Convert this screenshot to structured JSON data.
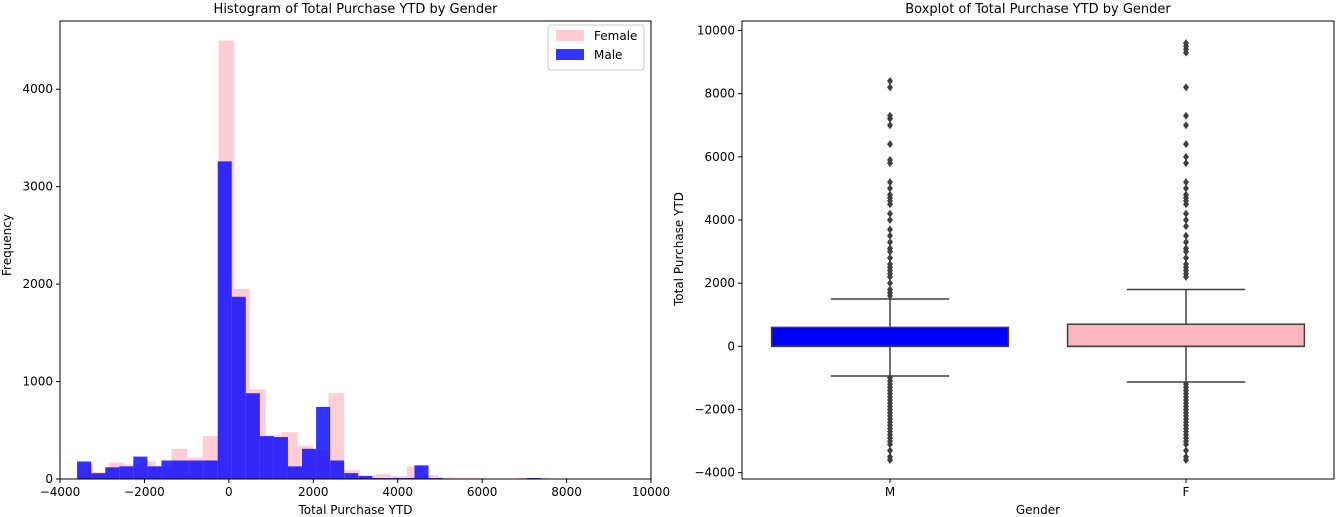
{
  "chart_data": [
    {
      "type": "bar",
      "title": "Histogram of Total Purchase YTD by Gender",
      "xlabel": "Total Purchase YTD",
      "ylabel": "Frequency",
      "xlim": [
        -4000,
        10000
      ],
      "ylim": [
        0,
        4700
      ],
      "x_ticks": [
        -4000,
        -2000,
        0,
        2000,
        4000,
        6000,
        8000,
        10000
      ],
      "y_ticks": [
        0,
        1000,
        2000,
        3000,
        4000
      ],
      "legend_position": "top-right",
      "grid": false,
      "series": [
        {
          "name": "Female",
          "color": "#ffc0cb",
          "alpha": 0.8,
          "bin_width": 372,
          "bins": [
            [
              -3593,
              150
            ],
            [
              -3221,
              70
            ],
            [
              -2849,
              170
            ],
            [
              -2477,
              150
            ],
            [
              -2105,
              180
            ],
            [
              -1733,
              130
            ],
            [
              -1361,
              310
            ],
            [
              -989,
              220
            ],
            [
              -617,
              440
            ],
            [
              -245,
              4500
            ],
            [
              127,
              1950
            ],
            [
              499,
              920
            ],
            [
              871,
              450
            ],
            [
              1243,
              480
            ],
            [
              1615,
              340
            ],
            [
              1987,
              290
            ],
            [
              2359,
              880
            ],
            [
              2731,
              90
            ],
            [
              3103,
              40
            ],
            [
              3475,
              50
            ],
            [
              3847,
              30
            ],
            [
              4219,
              130
            ],
            [
              4591,
              40
            ],
            [
              4963,
              15
            ],
            [
              5335,
              10
            ],
            [
              5707,
              10
            ],
            [
              6079,
              5
            ],
            [
              6451,
              5
            ],
            [
              6823,
              10
            ],
            [
              7195,
              10
            ],
            [
              7567,
              5
            ],
            [
              7939,
              5
            ],
            [
              8311,
              5
            ],
            [
              8683,
              5
            ],
            [
              9055,
              5
            ],
            [
              9427,
              5
            ]
          ]
        },
        {
          "name": "Male",
          "color": "#0000ff",
          "alpha": 0.8,
          "bin_width": 333,
          "bins": [
            [
              -3595,
              180
            ],
            [
              -3262,
              60
            ],
            [
              -2929,
              120
            ],
            [
              -2596,
              130
            ],
            [
              -2263,
              230
            ],
            [
              -1930,
              130
            ],
            [
              -1597,
              190
            ],
            [
              -1264,
              190
            ],
            [
              -931,
              190
            ],
            [
              -598,
              190
            ],
            [
              -265,
              3260
            ],
            [
              68,
              1870
            ],
            [
              401,
              880
            ],
            [
              734,
              440
            ],
            [
              1067,
              430
            ],
            [
              1400,
              130
            ],
            [
              1733,
              310
            ],
            [
              2066,
              740
            ],
            [
              2399,
              190
            ],
            [
              2732,
              60
            ],
            [
              3065,
              30
            ],
            [
              3398,
              10
            ],
            [
              3731,
              10
            ],
            [
              4064,
              10
            ],
            [
              4397,
              140
            ],
            [
              4730,
              10
            ],
            [
              5063,
              5
            ],
            [
              5396,
              5
            ],
            [
              5729,
              5
            ],
            [
              6062,
              5
            ],
            [
              6395,
              5
            ],
            [
              6728,
              5
            ],
            [
              7061,
              10
            ],
            [
              7394,
              5
            ],
            [
              7727,
              5
            ],
            [
              8060,
              5
            ],
            [
              8393,
              5
            ]
          ]
        }
      ]
    },
    {
      "type": "box",
      "title": "Boxplot of Total Purchase YTD by Gender",
      "xlabel": "Gender",
      "ylabel": "Total Purchase YTD",
      "categories": [
        "M",
        "F"
      ],
      "ylim": [
        -4200,
        10300
      ],
      "y_ticks": [
        -4000,
        -2000,
        0,
        2000,
        4000,
        6000,
        8000,
        10000
      ],
      "grid": false,
      "boxes": [
        {
          "name": "M",
          "color": "#0000ff",
          "whisker_low": -940,
          "q1": 0,
          "median": 0,
          "q3": 600,
          "whisker_high": 1500,
          "outliers": [
            -3600,
            -3500,
            -3300,
            -3100,
            -3000,
            -2900,
            -2800,
            -2700,
            -2600,
            -2500,
            -2400,
            -2300,
            -2200,
            -2100,
            -2000,
            -1900,
            -1800,
            -1700,
            -1600,
            -1500,
            -1400,
            -1300,
            -1200,
            -1100,
            -1000,
            1600,
            1700,
            1800,
            2000,
            2200,
            2300,
            2400,
            2500,
            2600,
            2800,
            3000,
            3100,
            3300,
            3500,
            3700,
            4000,
            4200,
            4500,
            4600,
            4700,
            4800,
            5000,
            5200,
            5800,
            5900,
            6400,
            7000,
            7200,
            7300,
            8200,
            8400
          ]
        },
        {
          "name": "F",
          "color": "#ffb6c1",
          "whisker_low": -1130,
          "q1": 0,
          "median": 0,
          "q3": 700,
          "whisker_high": 1800,
          "outliers": [
            -3600,
            -3500,
            -3300,
            -3100,
            -3000,
            -2900,
            -2800,
            -2700,
            -2600,
            -2500,
            -2400,
            -2300,
            -2200,
            -2100,
            -2000,
            -1900,
            -1800,
            -1700,
            -1600,
            -1500,
            -1400,
            -1300,
            -1200,
            2200,
            2300,
            2400,
            2500,
            2600,
            2800,
            3000,
            3100,
            3300,
            3500,
            3800,
            4000,
            4200,
            4500,
            4600,
            4700,
            4800,
            5000,
            5200,
            5800,
            6000,
            6400,
            7000,
            7300,
            8200,
            9300,
            9400,
            9500,
            9600
          ]
        }
      ]
    }
  ]
}
